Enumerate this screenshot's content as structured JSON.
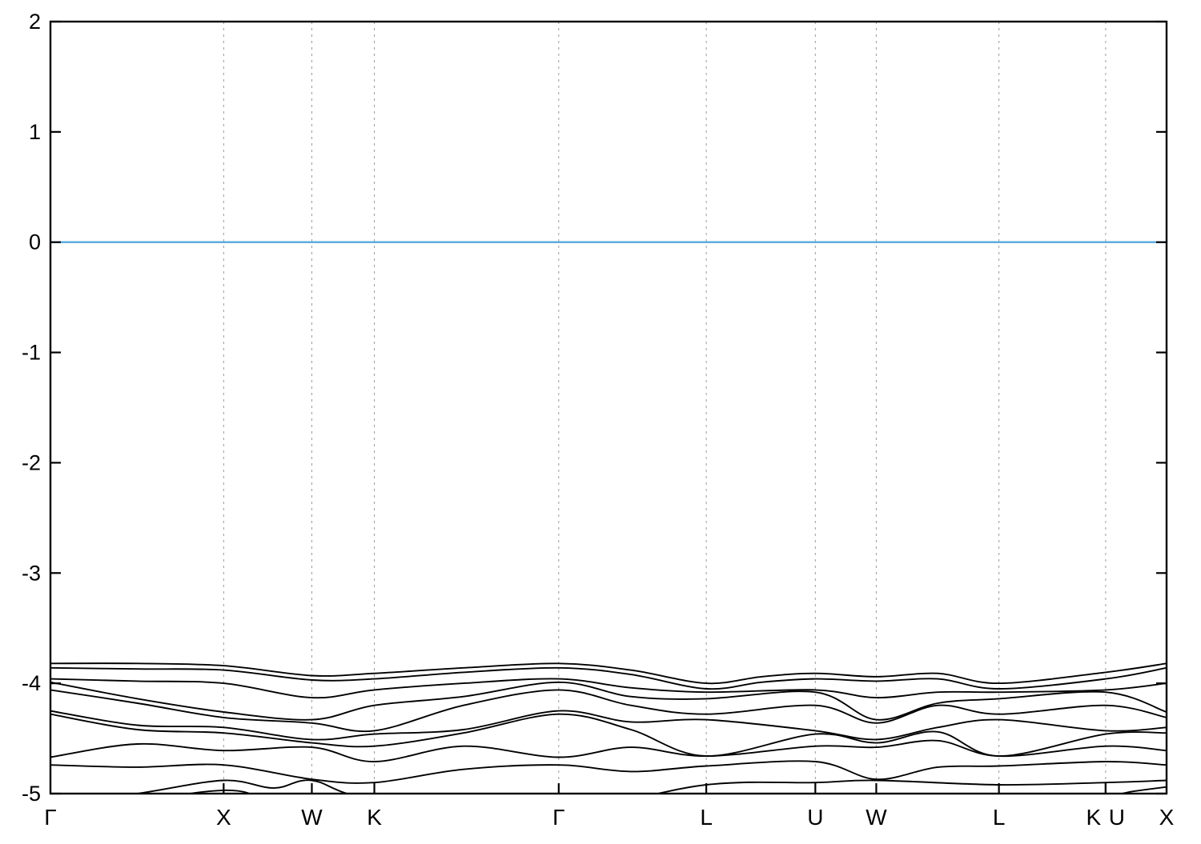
{
  "chart_data": {
    "type": "line",
    "title": "",
    "xlabel": "",
    "ylabel": "",
    "ylim": [
      -5,
      2
    ],
    "xlim": [
      0,
      1
    ],
    "grid": "vertical-dashed",
    "legend": "none",
    "description": "Electronic band structure along FCC high-symmetry k-path with Fermi level at 0",
    "yticks": [
      {
        "label": "2",
        "value": 2
      },
      {
        "label": "1",
        "value": 1
      },
      {
        "label": "0",
        "value": 0
      },
      {
        "label": "-1",
        "value": -1
      },
      {
        "label": "-2",
        "value": -2
      },
      {
        "label": "-3",
        "value": -3
      },
      {
        "label": "-4",
        "value": -4
      },
      {
        "label": "-5",
        "value": -5
      }
    ],
    "xticks": [
      {
        "label": "Γ",
        "pos": 0.0,
        "dx": 0
      },
      {
        "label": "X",
        "pos": 0.1552,
        "dx": 0
      },
      {
        "label": "W",
        "pos": 0.2342,
        "dx": 0
      },
      {
        "label": "K",
        "pos": 0.2902,
        "dx": 0
      },
      {
        "label": "Γ",
        "pos": 0.4554,
        "dx": 0
      },
      {
        "label": "L",
        "pos": 0.5876,
        "dx": 0
      },
      {
        "label": "U",
        "pos": 0.6853,
        "dx": 0
      },
      {
        "label": "W",
        "pos": 0.7399,
        "dx": 0
      },
      {
        "label": "L",
        "pos": 0.8498,
        "dx": 0
      },
      {
        "label": "K",
        "pos": 0.9454,
        "dx": -15
      },
      {
        "label": "U",
        "pos": 0.9454,
        "dx": 14
      },
      {
        "label": "X",
        "pos": 1.0,
        "dx": 0
      }
    ],
    "gridline_positions": [
      0.1552,
      0.2342,
      0.2902,
      0.4554,
      0.5876,
      0.6853,
      0.7399,
      0.8498,
      0.9454
    ],
    "fermi_level": 0,
    "colors": {
      "band": "#000000",
      "fermi_line": "#56a8db",
      "grid": "#9a9a9a",
      "border": "#000000",
      "background": "#ffffff"
    },
    "series": [
      {
        "name": "band-1",
        "points": [
          [
            0,
            -3.82
          ],
          [
            0.078,
            -3.82
          ],
          [
            0.1552,
            -3.84
          ],
          [
            0.2342,
            -3.93
          ],
          [
            0.2902,
            -3.91
          ],
          [
            0.37,
            -3.86
          ],
          [
            0.4554,
            -3.82
          ],
          [
            0.52,
            -3.88
          ],
          [
            0.5876,
            -4.0
          ],
          [
            0.637,
            -3.94
          ],
          [
            0.6853,
            -3.91
          ],
          [
            0.7399,
            -3.94
          ],
          [
            0.795,
            -3.91
          ],
          [
            0.8498,
            -4.0
          ],
          [
            0.9454,
            -3.9
          ],
          [
            1,
            -3.82
          ]
        ]
      },
      {
        "name": "band-2",
        "points": [
          [
            0,
            -3.86
          ],
          [
            0.078,
            -3.87
          ],
          [
            0.1552,
            -3.88
          ],
          [
            0.2342,
            -3.97
          ],
          [
            0.2902,
            -3.96
          ],
          [
            0.37,
            -3.9
          ],
          [
            0.4554,
            -3.86
          ],
          [
            0.52,
            -3.92
          ],
          [
            0.5876,
            -4.05
          ],
          [
            0.637,
            -3.99
          ],
          [
            0.6853,
            -3.96
          ],
          [
            0.7399,
            -3.98
          ],
          [
            0.795,
            -3.96
          ],
          [
            0.8498,
            -4.05
          ],
          [
            0.9454,
            -3.96
          ],
          [
            1,
            -3.86
          ]
        ]
      },
      {
        "name": "band-3",
        "points": [
          [
            0,
            -3.96
          ],
          [
            0.078,
            -3.98
          ],
          [
            0.1552,
            -4.0
          ],
          [
            0.2342,
            -4.13
          ],
          [
            0.2902,
            -4.06
          ],
          [
            0.37,
            -4.0
          ],
          [
            0.4554,
            -3.96
          ],
          [
            0.52,
            -4.04
          ],
          [
            0.5876,
            -4.08
          ],
          [
            0.6853,
            -4.06
          ],
          [
            0.7399,
            -4.13
          ],
          [
            0.795,
            -4.08
          ],
          [
            0.8498,
            -4.08
          ],
          [
            0.9454,
            -4.06
          ],
          [
            1,
            -4.0
          ]
        ]
      },
      {
        "name": "band-4",
        "points": [
          [
            0,
            -3.99
          ],
          [
            0.078,
            -4.14
          ],
          [
            0.1552,
            -4.26
          ],
          [
            0.2342,
            -4.33
          ],
          [
            0.2902,
            -4.2
          ],
          [
            0.37,
            -4.12
          ],
          [
            0.4554,
            -3.99
          ],
          [
            0.52,
            -4.12
          ],
          [
            0.5876,
            -4.14
          ],
          [
            0.6853,
            -4.08
          ],
          [
            0.7399,
            -4.33
          ],
          [
            0.795,
            -4.18
          ],
          [
            0.8498,
            -4.14
          ],
          [
            0.9454,
            -4.08
          ],
          [
            1,
            -4.26
          ]
        ]
      },
      {
        "name": "band-5",
        "points": [
          [
            0,
            -4.06
          ],
          [
            0.078,
            -4.18
          ],
          [
            0.1552,
            -4.31
          ],
          [
            0.2342,
            -4.36
          ],
          [
            0.2902,
            -4.43
          ],
          [
            0.37,
            -4.2
          ],
          [
            0.4554,
            -4.06
          ],
          [
            0.52,
            -4.2
          ],
          [
            0.5876,
            -4.28
          ],
          [
            0.6853,
            -4.2
          ],
          [
            0.7399,
            -4.36
          ],
          [
            0.795,
            -4.2
          ],
          [
            0.8498,
            -4.28
          ],
          [
            0.9454,
            -4.2
          ],
          [
            1,
            -4.31
          ]
        ]
      },
      {
        "name": "band-6",
        "points": [
          [
            0,
            -4.25
          ],
          [
            0.078,
            -4.38
          ],
          [
            0.1552,
            -4.4
          ],
          [
            0.2342,
            -4.51
          ],
          [
            0.2902,
            -4.46
          ],
          [
            0.37,
            -4.42
          ],
          [
            0.4554,
            -4.25
          ],
          [
            0.52,
            -4.35
          ],
          [
            0.5876,
            -4.33
          ],
          [
            0.6853,
            -4.43
          ],
          [
            0.7399,
            -4.51
          ],
          [
            0.795,
            -4.4
          ],
          [
            0.8498,
            -4.33
          ],
          [
            0.9454,
            -4.43
          ],
          [
            1,
            -4.4
          ]
        ]
      },
      {
        "name": "band-7",
        "points": [
          [
            0,
            -4.28
          ],
          [
            0.078,
            -4.42
          ],
          [
            0.1552,
            -4.45
          ],
          [
            0.2342,
            -4.54
          ],
          [
            0.2902,
            -4.57
          ],
          [
            0.37,
            -4.45
          ],
          [
            0.4554,
            -4.28
          ],
          [
            0.52,
            -4.42
          ],
          [
            0.5876,
            -4.66
          ],
          [
            0.6853,
            -4.46
          ],
          [
            0.7399,
            -4.54
          ],
          [
            0.795,
            -4.44
          ],
          [
            0.8498,
            -4.66
          ],
          [
            0.9454,
            -4.46
          ],
          [
            1,
            -4.45
          ]
        ]
      },
      {
        "name": "band-8",
        "points": [
          [
            0,
            -4.67
          ],
          [
            0.078,
            -4.55
          ],
          [
            0.1552,
            -4.61
          ],
          [
            0.2342,
            -4.58
          ],
          [
            0.2902,
            -4.71
          ],
          [
            0.37,
            -4.57
          ],
          [
            0.4554,
            -4.67
          ],
          [
            0.52,
            -4.58
          ],
          [
            0.5876,
            -4.66
          ],
          [
            0.6853,
            -4.57
          ],
          [
            0.7399,
            -4.58
          ],
          [
            0.795,
            -4.52
          ],
          [
            0.8498,
            -4.66
          ],
          [
            0.9454,
            -4.57
          ],
          [
            1,
            -4.61
          ]
        ]
      },
      {
        "name": "band-9",
        "points": [
          [
            0,
            -4.74
          ],
          [
            0.078,
            -4.76
          ],
          [
            0.1552,
            -4.74
          ],
          [
            0.2342,
            -4.87
          ],
          [
            0.2902,
            -4.9
          ],
          [
            0.37,
            -4.78
          ],
          [
            0.4554,
            -4.74
          ],
          [
            0.52,
            -4.8
          ],
          [
            0.5876,
            -4.75
          ],
          [
            0.6853,
            -4.71
          ],
          [
            0.7399,
            -4.87
          ],
          [
            0.795,
            -4.76
          ],
          [
            0.8498,
            -4.75
          ],
          [
            0.9454,
            -4.71
          ],
          [
            1,
            -4.74
          ]
        ]
      },
      {
        "name": "band-10",
        "points": [
          [
            0,
            -5.1
          ],
          [
            0.078,
            -5.0
          ],
          [
            0.1552,
            -4.88
          ],
          [
            0.2,
            -4.95
          ],
          [
            0.2342,
            -4.88
          ],
          [
            0.2902,
            -5.05
          ],
          [
            0.4554,
            -5.15
          ],
          [
            0.5876,
            -4.92
          ],
          [
            0.6853,
            -4.9
          ],
          [
            0.7399,
            -4.88
          ],
          [
            0.8498,
            -4.92
          ],
          [
            0.9454,
            -4.9
          ],
          [
            1,
            -4.88
          ]
        ]
      },
      {
        "name": "band-11",
        "points": [
          [
            0,
            -5.25
          ],
          [
            0.1552,
            -4.97
          ],
          [
            0.2342,
            -5.2
          ],
          [
            0.4554,
            -5.3
          ],
          [
            0.5876,
            -5.15
          ],
          [
            0.6853,
            -5.05
          ],
          [
            0.7399,
            -5.18
          ],
          [
            0.8498,
            -5.12
          ],
          [
            0.9454,
            -5.02
          ],
          [
            0.97,
            -4.98
          ],
          [
            1,
            -4.94
          ]
        ]
      }
    ]
  }
}
